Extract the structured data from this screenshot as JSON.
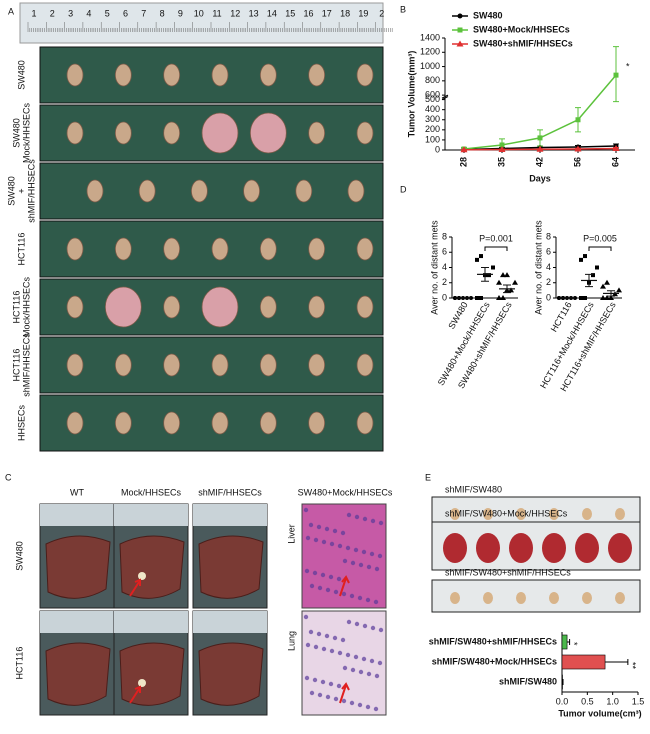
{
  "figure": {
    "panels": [
      "A",
      "B",
      "C",
      "D",
      "E"
    ],
    "ruler": [
      "1",
      "2",
      "3",
      "4",
      "5",
      "6",
      "7",
      "8",
      "9",
      "10",
      "11",
      "12",
      "13",
      "14",
      "15",
      "16",
      "17",
      "18",
      "19",
      "2"
    ],
    "panel_a_rows": [
      [
        "SW480"
      ],
      [
        "SW480",
        "Mock/HHSECs"
      ],
      [
        "SW480",
        "+",
        "shMIF/HHSECs"
      ],
      [
        "HCT116"
      ],
      [
        "HCT116",
        "Mock/HHSECs"
      ],
      [
        "HCT116",
        "shMIF/HHSECs"
      ],
      [
        "HHSECs"
      ]
    ],
    "panel_c_columns": [
      "WT",
      "Mock/HHSECs",
      "shMIF/HHSECs"
    ],
    "panel_c_rows": [
      "SW480",
      "HCT116"
    ],
    "panel_c_histology_title": "SW480+Mock/HHSECs",
    "panel_c_histology_rows": [
      "Liver",
      "Lung"
    ],
    "panel_e_photos": [
      "shMIF/SW480",
      "shMIF/SW480+Mock/HHSECs",
      "shMIF/SW480+shMIF/HHSECs"
    ]
  },
  "chart_data": [
    {
      "type": "line",
      "x_label": "Days",
      "y_label": "Tumor Volume(mm³)",
      "categories": [
        "28",
        "35",
        "42",
        "56",
        "64"
      ],
      "ylim": [
        0,
        1400
      ],
      "ybreak": [
        500,
        600
      ],
      "yticks": [
        0,
        100,
        200,
        300,
        400,
        500,
        600,
        800,
        1000,
        1200,
        1400
      ],
      "series": [
        {
          "name": "SW480",
          "color": "#000000",
          "marker": "circle",
          "values": [
            5,
            15,
            25,
            30,
            40
          ],
          "errors": [
            5,
            10,
            15,
            15,
            20
          ]
        },
        {
          "name": "SW480+Mock/HHSECs",
          "color": "#5cc23c",
          "marker": "square",
          "values": [
            10,
            50,
            120,
            300,
            880
          ],
          "errors": [
            15,
            60,
            80,
            120,
            400
          ]
        },
        {
          "name": "SW480+shMIF/HHSECs",
          "color": "#e03030",
          "marker": "triangle",
          "values": [
            3,
            5,
            8,
            10,
            15
          ],
          "errors": [
            3,
            5,
            5,
            8,
            10
          ]
        }
      ],
      "annotation": "*"
    },
    {
      "type": "strip",
      "y_label": "Aver no. of distant mets",
      "categories": [
        "SW480",
        "SW480+Mock/HHSECs",
        "SW480+shMIF/HHSECs"
      ],
      "markers": [
        "circle",
        "square",
        "triangle"
      ],
      "points": [
        [
          0,
          0,
          0,
          0,
          0,
          0,
          0
        ],
        [
          0,
          0,
          3,
          3,
          4,
          5,
          5.5
        ],
        [
          0,
          0,
          1,
          1,
          2,
          2,
          3,
          3
        ]
      ],
      "means": [
        0,
        3.1,
        1.2
      ],
      "sems": [
        0,
        0.9,
        0.5
      ],
      "ylim": [
        0,
        8
      ],
      "yticks": [
        0,
        2,
        4,
        6,
        8
      ],
      "annotation": "P=0.001"
    },
    {
      "type": "strip",
      "y_label": "Aver no. of distant mets",
      "categories": [
        "HCT116",
        "HCT116+Mock/HHSECs",
        "HCT116+shMIF/HHSECs"
      ],
      "markers": [
        "circle",
        "square",
        "triangle"
      ],
      "points": [
        [
          0,
          0,
          0,
          0,
          0,
          0,
          0
        ],
        [
          0,
          0,
          2,
          3,
          4,
          5,
          5.5
        ],
        [
          0,
          0,
          0,
          0.5,
          1,
          1.5,
          2
        ]
      ],
      "means": [
        0,
        2.3,
        0.6
      ],
      "sems": [
        0,
        0.8,
        0.35
      ],
      "ylim": [
        0,
        8
      ],
      "yticks": [
        0,
        2,
        4,
        6,
        8
      ],
      "annotation": "P=0.005"
    },
    {
      "type": "hbar",
      "x_label": "Tumor volume(cm³)",
      "categories": [
        "shMIF/SW480+shMIF/HHSECs",
        "shMIF/SW480+Mock/HHSECs",
        "shMIF/SW480"
      ],
      "values": [
        0.1,
        0.85,
        0.01
      ],
      "errors": [
        0.05,
        0.45,
        0.01
      ],
      "colors": [
        "#4cb84c",
        "#e05050",
        "#888888"
      ],
      "significance": [
        "*",
        "**",
        null
      ],
      "xlim": [
        0,
        1.5
      ],
      "xticks": [
        {
          "value": 0,
          "label": "0.0"
        },
        0.5,
        {
          "value": 1,
          "label": "1.0"
        },
        1.5
      ]
    }
  ]
}
